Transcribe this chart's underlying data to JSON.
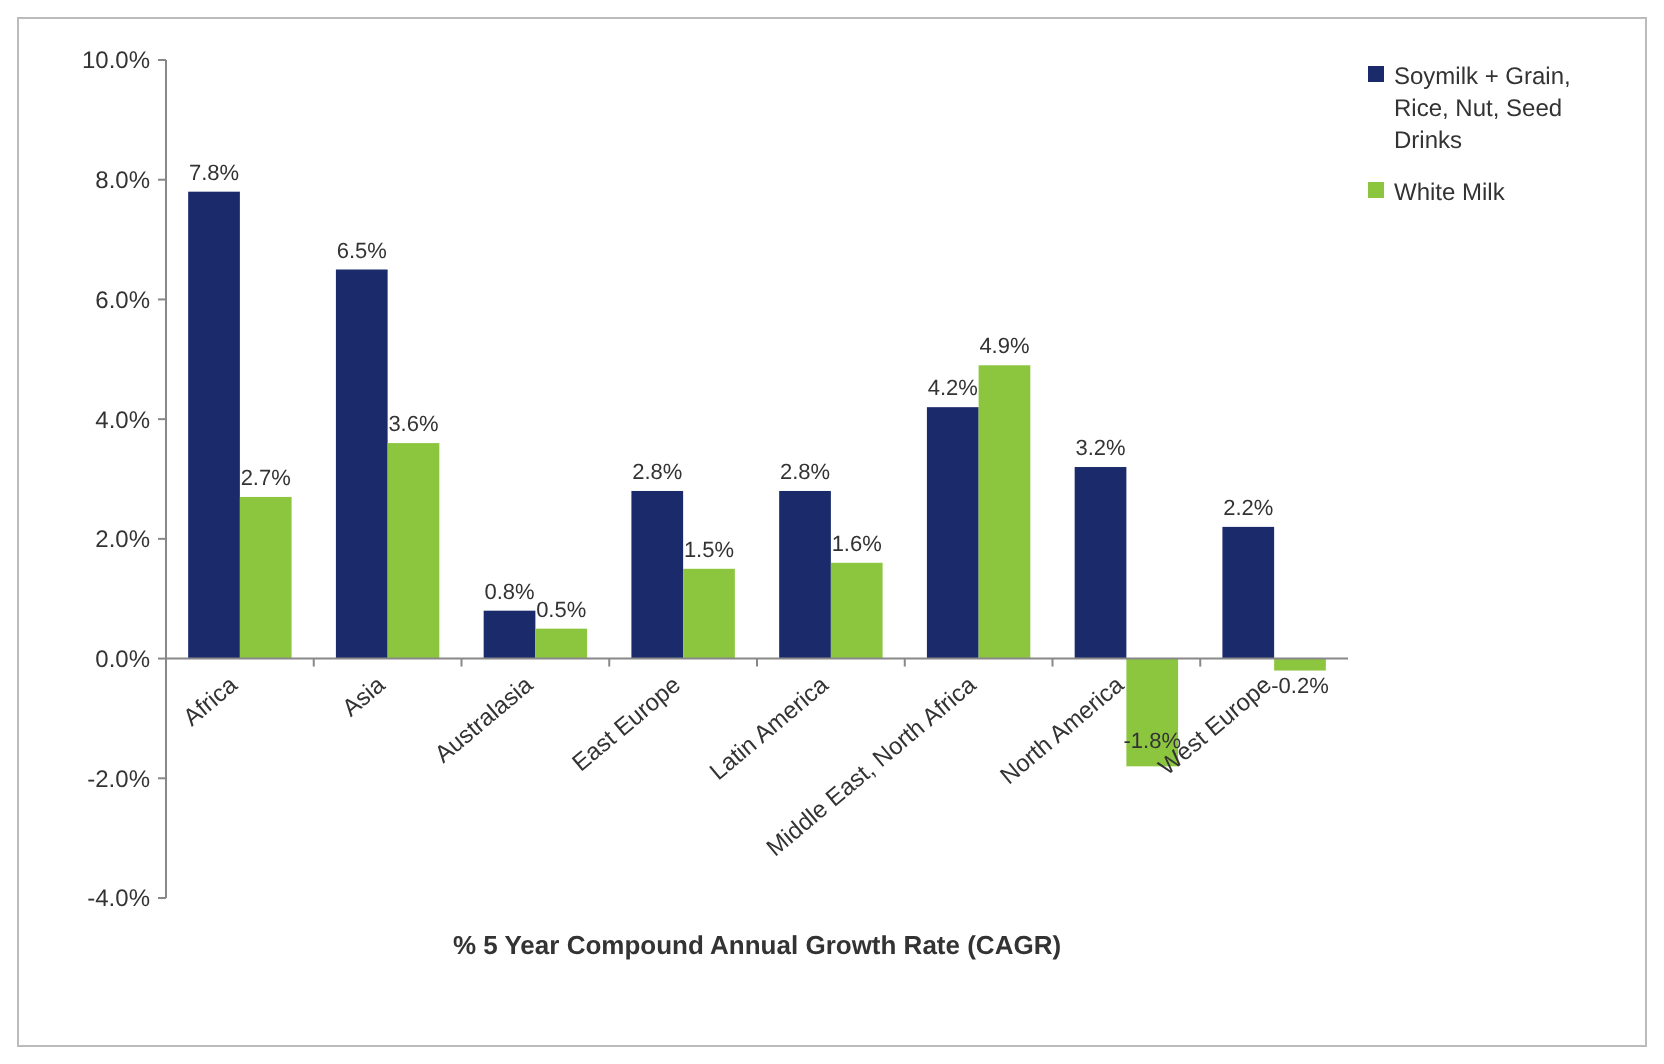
{
  "chart_data": {
    "type": "bar",
    "xlabel": "% 5 Year Compound Annual Growth Rate (CAGR)",
    "categories": [
      "Africa",
      "Asia",
      "Australasia",
      "East Europe",
      "Latin America",
      "Middle East, North Africa",
      "North America",
      "West Europe"
    ],
    "series": [
      {
        "name": "Soymilk + Grain, Rice, Nut, Seed Drinks",
        "color": "#1b2a6b",
        "values": [
          7.8,
          6.5,
          0.8,
          2.8,
          2.8,
          4.2,
          3.2,
          2.2
        ],
        "value_labels": [
          "7.8%",
          "6.5%",
          "0.8%",
          "2.8%",
          "2.8%",
          "4.2%",
          "3.2%",
          "2.2%"
        ]
      },
      {
        "name": "White Milk",
        "color": "#8cc63f",
        "values": [
          2.7,
          3.6,
          0.5,
          1.5,
          1.6,
          4.9,
          -1.8,
          -0.2
        ],
        "value_labels": [
          "2.7%",
          "3.6%",
          "0.5%",
          "1.5%",
          "1.6%",
          "4.9%",
          "-1.8%",
          "-0.2%"
        ]
      }
    ],
    "ylim": [
      -4,
      10
    ],
    "yticks": [
      {
        "value": -4,
        "label": "-4.0%"
      },
      {
        "value": -2,
        "label": "-2.0%"
      },
      {
        "value": 0,
        "label": "0.0%"
      },
      {
        "value": 2,
        "label": "2.0%"
      },
      {
        "value": 4,
        "label": "4.0%"
      },
      {
        "value": 6,
        "label": "6.0%"
      },
      {
        "value": 8,
        "label": "8.0%"
      },
      {
        "value": 10,
        "label": "10.0%"
      }
    ],
    "grid": false,
    "legend": "top right"
  }
}
